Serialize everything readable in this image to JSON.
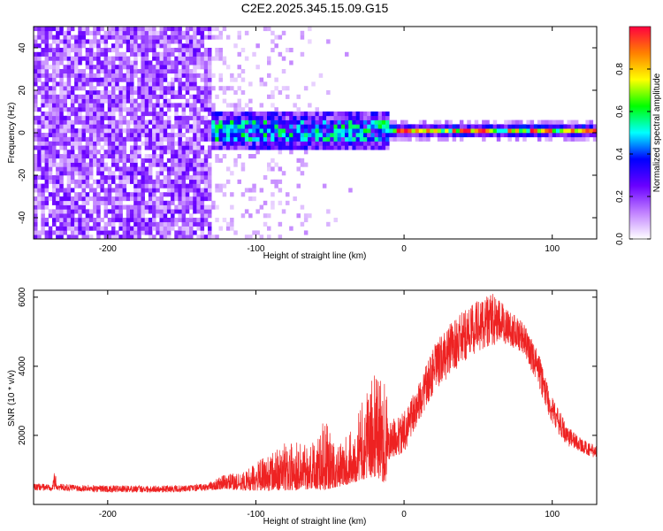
{
  "chart_data": [
    {
      "type": "heatmap",
      "title": "C2E2.2025.345.15.09.G15",
      "xlabel": "Height of straight line (km)",
      "ylabel": "Frequency (Hz)",
      "xlim": [
        -250,
        130
      ],
      "ylim": [
        -50,
        50
      ],
      "xticks": [
        -200,
        -100,
        0,
        100
      ],
      "yticks": [
        40,
        20,
        0,
        -20,
        -40
      ],
      "colorbar": {
        "label": "Normalized spectral amplitude",
        "range": [
          0.0,
          1.0
        ],
        "ticks": [
          "0.0",
          "0.2",
          "0.4",
          "0.6",
          "0.8"
        ],
        "colors": [
          "#ffffff",
          "#c080ff",
          "#6a00ff",
          "#0000ff",
          "#00ffff",
          "#00ff00",
          "#ffff00",
          "#ff8000",
          "#ff0040"
        ]
      },
      "regions": [
        {
          "x_range": [
            -250,
            -130
          ],
          "freq_range": [
            -50,
            50
          ],
          "amplitude": 0.2,
          "description": "broadband noise"
        },
        {
          "x_range": [
            -130,
            -10
          ],
          "freq_range": [
            -8,
            8
          ],
          "amplitude": 0.3,
          "description": "emerging signal"
        },
        {
          "x_range": [
            -10,
            130
          ],
          "freq_range": [
            -3,
            3
          ],
          "amplitude": 0.9,
          "description": "narrow carrier line"
        }
      ]
    },
    {
      "type": "line",
      "xlabel": "Height of straight line (km)",
      "ylabel": "SNR (10 * v/v)",
      "xlim": [
        -250,
        130
      ],
      "ylim": [
        0,
        6200
      ],
      "xticks": [
        -200,
        -100,
        0,
        100
      ],
      "yticks": [
        2000,
        4000,
        6000
      ],
      "line_color": "#ee2222",
      "series": [
        {
          "name": "SNR",
          "envelope": {
            "x": [
              -250,
              -237,
              -236,
              -234,
              -200,
              -150,
              -133,
              -120,
              -110,
              -100,
              -80,
              -60,
              -55,
              -45,
              -40,
              -35,
              -30,
              -20,
              -12,
              -11,
              0,
              10,
              20,
              30,
              40,
              50,
              60,
              70,
              80,
              90,
              100,
              110,
              120,
              130
            ],
            "lo": [
              400,
              400,
              400,
              400,
              350,
              350,
              400,
              450,
              400,
              400,
              400,
              450,
              400,
              500,
              550,
              600,
              700,
              800,
              600,
              1300,
              1500,
              2400,
              3200,
              3700,
              4100,
              4400,
              4600,
              4600,
              4400,
              3500,
              2300,
              1700,
              1500,
              1300
            ],
            "hi": [
              600,
              600,
              1050,
              600,
              550,
              550,
              600,
              900,
              900,
              1200,
              1800,
              1900,
              2600,
              1700,
              1900,
              2300,
              2800,
              3800,
              3700,
              2400,
              2700,
              3500,
              4600,
              5200,
              5600,
              6000,
              6100,
              5700,
              5300,
              4500,
              3100,
              2300,
              1900,
              1700
            ]
          }
        }
      ]
    }
  ]
}
